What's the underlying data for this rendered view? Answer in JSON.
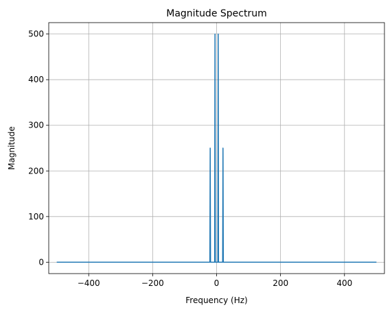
{
  "chart_data": {
    "type": "line",
    "title": "Magnitude Spectrum",
    "xlabel": "Frequency (Hz)",
    "ylabel": "Magnitude",
    "xlim": [
      -525,
      525
    ],
    "ylim": [
      -25,
      525
    ],
    "xticks": [
      -400,
      -200,
      0,
      200,
      400
    ],
    "xtick_labels": [
      "−400",
      "−200",
      "0",
      "200",
      "400"
    ],
    "yticks": [
      0,
      100,
      200,
      300,
      400,
      500
    ],
    "ytick_labels": [
      "0",
      "100",
      "200",
      "300",
      "400",
      "500"
    ],
    "grid": true,
    "line_color": "#1f77b4",
    "series": [
      {
        "x": [
          -500,
          -21,
          -20,
          -19,
          -6,
          -5,
          -4,
          -1,
          0,
          1,
          4,
          5,
          6,
          19,
          20,
          21,
          500
        ],
        "y": [
          0,
          0,
          250,
          0,
          0,
          500,
          0,
          0,
          0,
          0,
          0,
          500,
          0,
          0,
          250,
          0,
          0
        ]
      }
    ]
  }
}
